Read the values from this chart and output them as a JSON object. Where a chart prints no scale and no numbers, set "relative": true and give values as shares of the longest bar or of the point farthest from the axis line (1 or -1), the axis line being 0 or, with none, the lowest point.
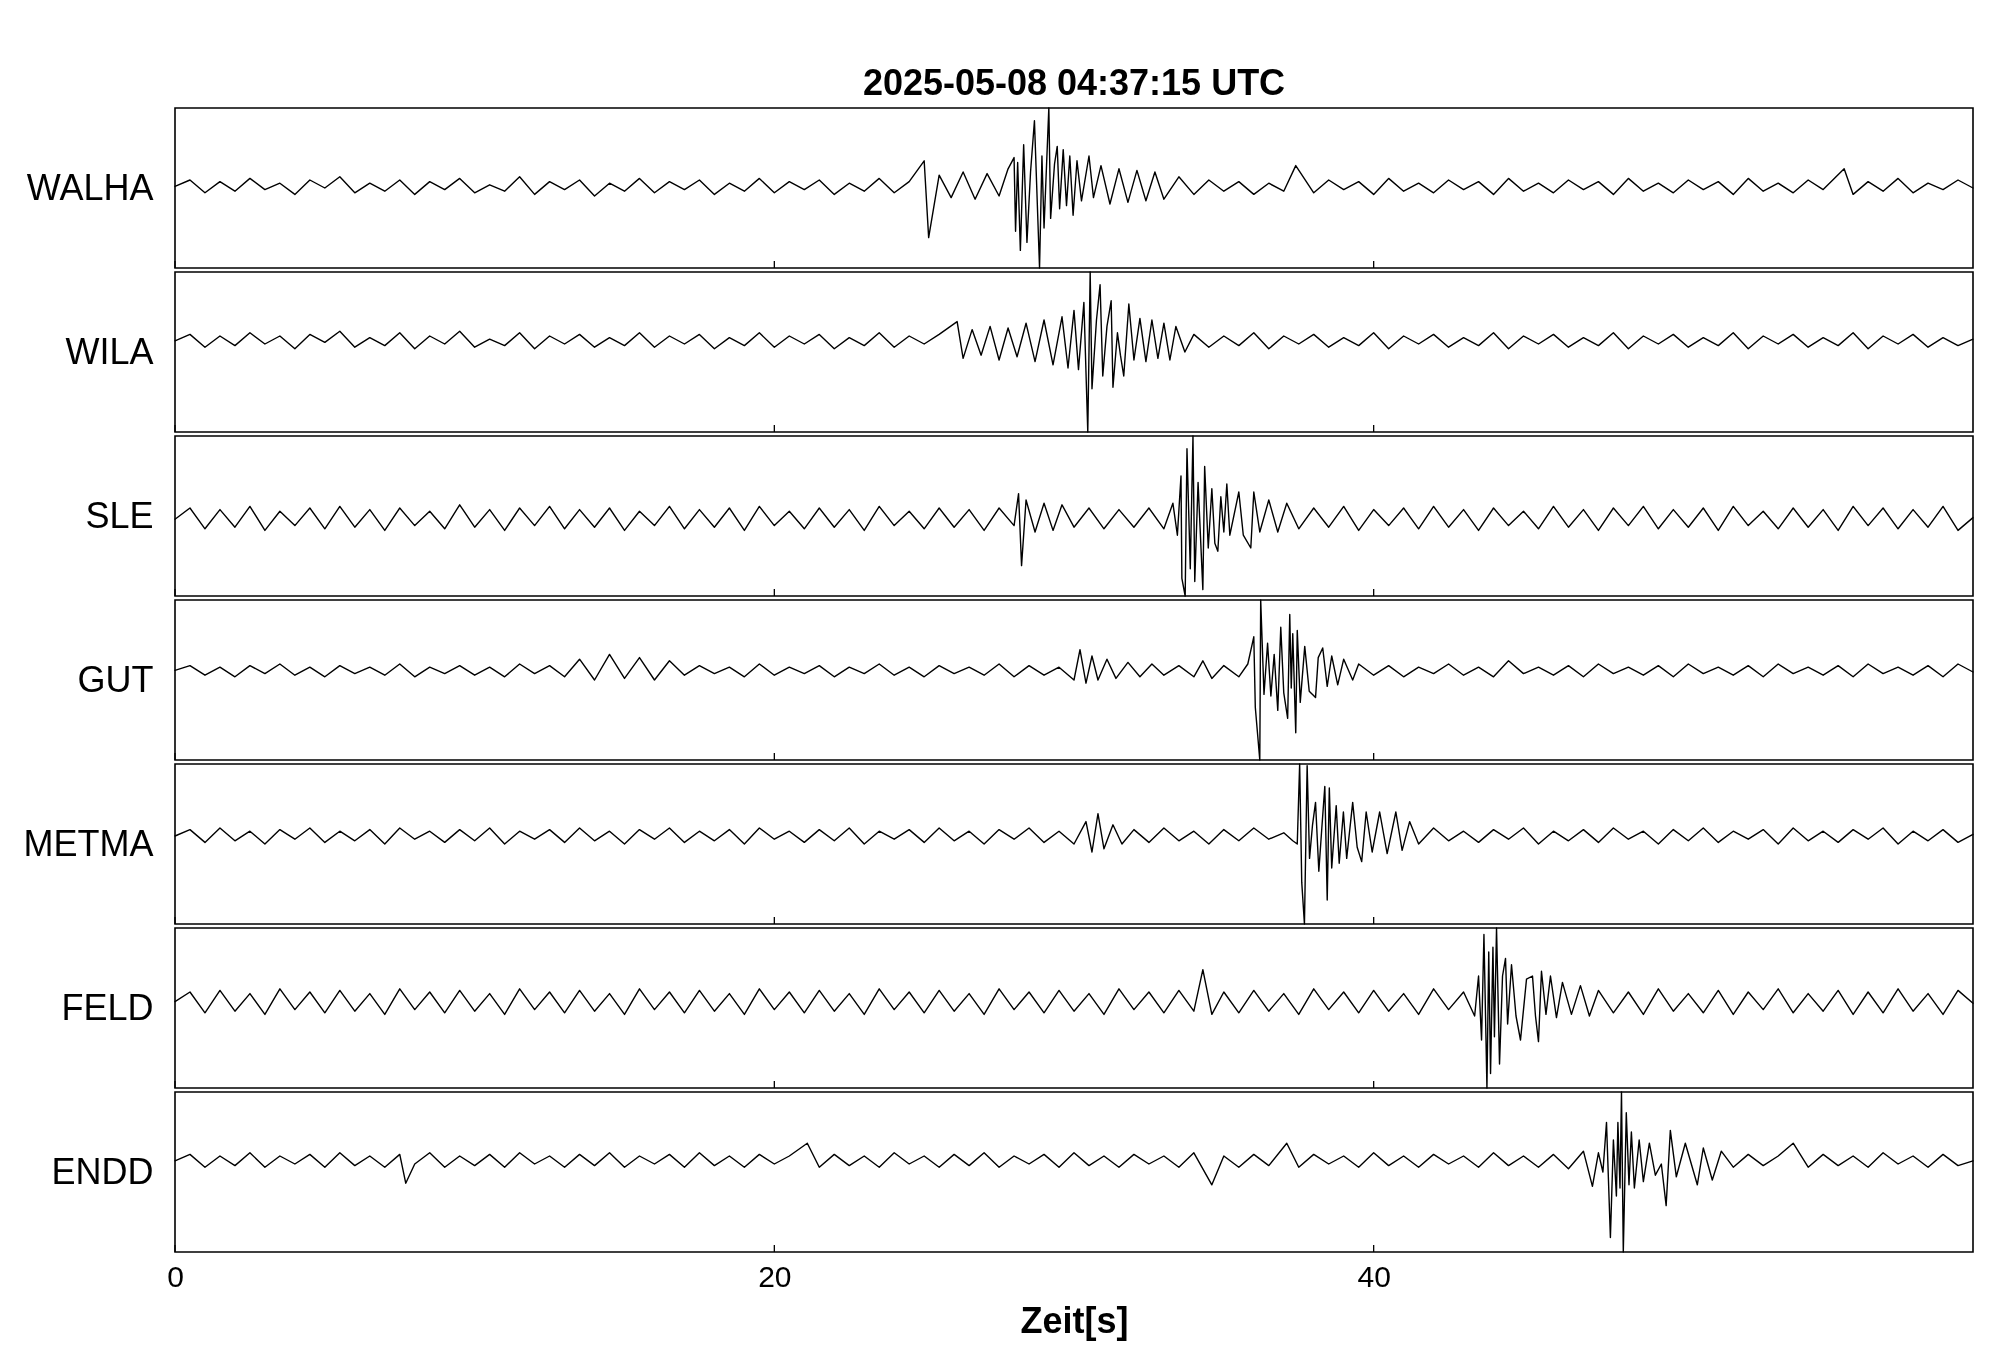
{
  "chart_data": [
    {
      "type": "line",
      "relative": true,
      "title": "2025-05-08  04:37:15 UTC",
      "ylabel": "WALHA",
      "color": "#000000",
      "xlim": [
        0,
        60
      ],
      "xticks": [
        0,
        20,
        40
      ],
      "tick_labels": false,
      "x": [
        0,
        0.5,
        1,
        1.5,
        2,
        2.5,
        3,
        3.5,
        4,
        4.5,
        5,
        5.5,
        6,
        6.5,
        7,
        7.5,
        8,
        8.5,
        9,
        9.5,
        10,
        10.5,
        11,
        11.5,
        12,
        12.5,
        13,
        13.5,
        14,
        14.5,
        15,
        15.5,
        16,
        16.5,
        17,
        17.5,
        18,
        18.5,
        19,
        19.5,
        20,
        20.5,
        21,
        21.5,
        22,
        22.5,
        23,
        23.5,
        24,
        24.5,
        25.0,
        25.15,
        25.5,
        25.9,
        26.3,
        26.7,
        27.1,
        27.5,
        27.8,
        28.0,
        28.05,
        28.12,
        28.21,
        28.32,
        28.43,
        28.55,
        28.68,
        28.85,
        28.93,
        29.0,
        29.16,
        29.22,
        29.35,
        29.44,
        29.52,
        29.64,
        29.75,
        29.86,
        29.97,
        30.1,
        30.25,
        30.5,
        30.65,
        30.9,
        31.2,
        31.5,
        31.8,
        32.1,
        32.4,
        32.7,
        33.0,
        33.5,
        34,
        34.5,
        35,
        35.5,
        36,
        36.5,
        37,
        37.4,
        38,
        38.5,
        39,
        39.5,
        40,
        40.5,
        41,
        41.5,
        42,
        42.5,
        43,
        43.5,
        44,
        44.5,
        45,
        45.5,
        46,
        46.5,
        47,
        47.5,
        48,
        48.5,
        49,
        49.5,
        50,
        50.5,
        51,
        51.5,
        52,
        52.5,
        53,
        53.5,
        54,
        54.5,
        55,
        55.7,
        56,
        56.5,
        57,
        57.5,
        58,
        58.5,
        59,
        59.5,
        60
      ],
      "values": [
        0.51,
        0.55,
        0.47,
        0.54,
        0.48,
        0.56,
        0.49,
        0.53,
        0.46,
        0.55,
        0.5,
        0.57,
        0.47,
        0.53,
        0.48,
        0.55,
        0.46,
        0.54,
        0.49,
        0.56,
        0.47,
        0.52,
        0.48,
        0.57,
        0.46,
        0.54,
        0.49,
        0.55,
        0.45,
        0.53,
        0.48,
        0.56,
        0.47,
        0.54,
        0.49,
        0.55,
        0.46,
        0.53,
        0.48,
        0.56,
        0.47,
        0.54,
        0.49,
        0.55,
        0.46,
        0.53,
        0.48,
        0.56,
        0.47,
        0.54,
        0.67,
        0.19,
        0.58,
        0.44,
        0.6,
        0.43,
        0.59,
        0.45,
        0.62,
        0.69,
        0.23,
        0.66,
        0.11,
        0.77,
        0.16,
        0.6,
        0.92,
        0.0,
        0.7,
        0.25,
        1.0,
        0.31,
        0.65,
        0.76,
        0.37,
        0.74,
        0.39,
        0.7,
        0.33,
        0.67,
        0.42,
        0.7,
        0.44,
        0.64,
        0.4,
        0.62,
        0.41,
        0.61,
        0.42,
        0.6,
        0.43,
        0.57,
        0.46,
        0.55,
        0.48,
        0.54,
        0.46,
        0.53,
        0.48,
        0.64,
        0.47,
        0.55,
        0.49,
        0.54,
        0.46,
        0.56,
        0.48,
        0.53,
        0.47,
        0.55,
        0.49,
        0.54,
        0.46,
        0.56,
        0.48,
        0.53,
        0.47,
        0.55,
        0.49,
        0.54,
        0.46,
        0.56,
        0.48,
        0.53,
        0.47,
        0.55,
        0.49,
        0.54,
        0.46,
        0.56,
        0.48,
        0.53,
        0.47,
        0.55,
        0.49,
        0.62,
        0.46,
        0.54,
        0.48,
        0.56,
        0.47,
        0.53,
        0.49,
        0.55,
        0.5
      ]
    },
    {
      "type": "line",
      "relative": true,
      "ylabel": "WILA",
      "color": "#000000",
      "xlim": [
        0,
        60
      ],
      "xticks": [
        0,
        20,
        40
      ],
      "tick_labels": false,
      "x": [
        0,
        0.5,
        1,
        1.5,
        2,
        2.5,
        3,
        3.5,
        4,
        4.5,
        5,
        5.5,
        6,
        6.5,
        7,
        7.5,
        8,
        8.5,
        9,
        9.5,
        10,
        10.5,
        11,
        11.5,
        12,
        12.5,
        13,
        13.5,
        14,
        14.5,
        15,
        15.5,
        16,
        16.5,
        17,
        17.5,
        18,
        18.5,
        19,
        19.5,
        20,
        20.5,
        21,
        21.5,
        22,
        22.5,
        23,
        23.5,
        24,
        24.5,
        25,
        25.5,
        26.1,
        26.3,
        26.6,
        26.9,
        27.2,
        27.5,
        27.8,
        28.1,
        28.4,
        28.7,
        29.0,
        29.3,
        29.6,
        29.8,
        30.0,
        30.15,
        30.33,
        30.46,
        30.54,
        30.6,
        30.75,
        30.87,
        30.96,
        31.1,
        31.24,
        31.3,
        31.45,
        31.55,
        31.66,
        31.83,
        32.0,
        32.2,
        32.4,
        32.6,
        32.8,
        33.0,
        33.2,
        33.4,
        33.7,
        34.0,
        34.5,
        35,
        35.5,
        36,
        36.5,
        37,
        37.5,
        38,
        38.5,
        39,
        39.5,
        40,
        40.5,
        41,
        41.5,
        42,
        42.5,
        43,
        43.5,
        44,
        44.5,
        45,
        45.5,
        46,
        46.5,
        47,
        47.5,
        48,
        48.5,
        49,
        49.5,
        50,
        50.5,
        51,
        51.5,
        52,
        52.5,
        53,
        53.5,
        54,
        54.5,
        55,
        55.5,
        56,
        56.5,
        57,
        57.5,
        58,
        58.5,
        59,
        59.5,
        60
      ],
      "values": [
        0.57,
        0.61,
        0.53,
        0.6,
        0.54,
        0.62,
        0.55,
        0.6,
        0.52,
        0.61,
        0.56,
        0.63,
        0.53,
        0.59,
        0.54,
        0.62,
        0.52,
        0.6,
        0.55,
        0.63,
        0.53,
        0.58,
        0.54,
        0.62,
        0.52,
        0.6,
        0.55,
        0.61,
        0.53,
        0.59,
        0.54,
        0.62,
        0.53,
        0.6,
        0.55,
        0.61,
        0.52,
        0.59,
        0.54,
        0.62,
        0.53,
        0.6,
        0.55,
        0.61,
        0.52,
        0.59,
        0.54,
        0.62,
        0.53,
        0.6,
        0.55,
        0.61,
        0.69,
        0.46,
        0.64,
        0.48,
        0.66,
        0.45,
        0.65,
        0.47,
        0.68,
        0.44,
        0.7,
        0.42,
        0.72,
        0.4,
        0.76,
        0.39,
        0.81,
        0.0,
        1.0,
        0.27,
        0.7,
        0.92,
        0.35,
        0.66,
        0.82,
        0.28,
        0.62,
        0.48,
        0.35,
        0.8,
        0.45,
        0.71,
        0.44,
        0.7,
        0.46,
        0.68,
        0.45,
        0.66,
        0.5,
        0.61,
        0.53,
        0.6,
        0.54,
        0.62,
        0.52,
        0.6,
        0.55,
        0.61,
        0.53,
        0.59,
        0.54,
        0.62,
        0.52,
        0.6,
        0.55,
        0.61,
        0.53,
        0.59,
        0.54,
        0.62,
        0.52,
        0.6,
        0.55,
        0.61,
        0.53,
        0.59,
        0.54,
        0.62,
        0.52,
        0.6,
        0.55,
        0.61,
        0.53,
        0.59,
        0.54,
        0.62,
        0.52,
        0.6,
        0.55,
        0.61,
        0.53,
        0.59,
        0.54,
        0.62,
        0.52,
        0.6,
        0.55,
        0.61,
        0.53,
        0.59,
        0.54,
        0.58
      ]
    },
    {
      "type": "line",
      "relative": true,
      "ylabel": "SLE",
      "color": "#000000",
      "xlim": [
        0,
        60
      ],
      "xticks": [
        0,
        20,
        40
      ],
      "tick_labels": false,
      "x": [
        0,
        0.5,
        1,
        1.5,
        2,
        2.5,
        3,
        3.5,
        4,
        4.5,
        5,
        5.5,
        6,
        6.5,
        7,
        7.5,
        8,
        8.5,
        9,
        9.5,
        10,
        10.5,
        11,
        11.5,
        12,
        12.5,
        13,
        13.5,
        14,
        14.5,
        15,
        15.5,
        16,
        16.5,
        17,
        17.5,
        18,
        18.5,
        19,
        19.5,
        20,
        20.5,
        21,
        21.5,
        22,
        22.5,
        23,
        23.5,
        24,
        24.5,
        25,
        25.5,
        26,
        26.5,
        27,
        27.5,
        28.0,
        28.15,
        28.25,
        28.4,
        28.7,
        29.0,
        29.3,
        29.6,
        30,
        30.5,
        31,
        31.5,
        32,
        32.5,
        33,
        33.3,
        33.45,
        33.57,
        33.6,
        33.71,
        33.77,
        33.88,
        33.97,
        34.03,
        34.14,
        34.3,
        34.36,
        34.48,
        34.6,
        34.7,
        34.8,
        34.9,
        35.0,
        35.1,
        35.2,
        35.5,
        35.65,
        35.9,
        36.0,
        36.2,
        36.5,
        36.8,
        37.1,
        37.5,
        38,
        38.5,
        39,
        39.5,
        40,
        40.5,
        41,
        41.5,
        42,
        42.5,
        43,
        43.5,
        44,
        44.5,
        45,
        45.5,
        46,
        46.5,
        47,
        47.5,
        48,
        48.5,
        49,
        49.5,
        50,
        50.5,
        51,
        51.5,
        52,
        52.5,
        53,
        53.5,
        54,
        54.5,
        55,
        55.5,
        56,
        56.5,
        57,
        57.5,
        58,
        58.5,
        59,
        59.5,
        60
      ],
      "values": [
        0.48,
        0.55,
        0.42,
        0.54,
        0.43,
        0.56,
        0.41,
        0.53,
        0.44,
        0.55,
        0.42,
        0.56,
        0.43,
        0.54,
        0.41,
        0.55,
        0.44,
        0.53,
        0.42,
        0.57,
        0.43,
        0.54,
        0.41,
        0.55,
        0.44,
        0.56,
        0.42,
        0.54,
        0.43,
        0.55,
        0.41,
        0.53,
        0.44,
        0.56,
        0.42,
        0.54,
        0.43,
        0.55,
        0.41,
        0.56,
        0.44,
        0.53,
        0.42,
        0.55,
        0.43,
        0.54,
        0.41,
        0.56,
        0.44,
        0.53,
        0.42,
        0.55,
        0.43,
        0.54,
        0.41,
        0.55,
        0.44,
        0.64,
        0.19,
        0.6,
        0.4,
        0.58,
        0.41,
        0.57,
        0.43,
        0.55,
        0.42,
        0.54,
        0.43,
        0.55,
        0.42,
        0.58,
        0.38,
        0.75,
        0.11,
        0.0,
        0.92,
        0.17,
        1.0,
        0.09,
        0.71,
        0.04,
        0.81,
        0.3,
        0.67,
        0.33,
        0.28,
        0.62,
        0.4,
        0.7,
        0.38,
        0.65,
        0.38,
        0.3,
        0.65,
        0.4,
        0.6,
        0.4,
        0.58,
        0.42,
        0.55,
        0.43,
        0.56,
        0.41,
        0.54,
        0.44,
        0.55,
        0.42,
        0.56,
        0.43,
        0.54,
        0.41,
        0.55,
        0.44,
        0.53,
        0.42,
        0.56,
        0.43,
        0.54,
        0.41,
        0.55,
        0.44,
        0.56,
        0.42,
        0.54,
        0.43,
        0.55,
        0.41,
        0.56,
        0.44,
        0.53,
        0.42,
        0.55,
        0.43,
        0.54,
        0.41,
        0.56,
        0.44,
        0.55,
        0.42,
        0.54,
        0.43,
        0.56,
        0.41,
        0.49
      ]
    },
    {
      "type": "line",
      "relative": true,
      "ylabel": "GUT",
      "color": "#000000",
      "xlim": [
        0,
        60
      ],
      "xticks": [
        0,
        20,
        40
      ],
      "tick_labels": false,
      "x": [
        0,
        0.5,
        1,
        1.5,
        2,
        2.5,
        3,
        3.5,
        4,
        4.5,
        5,
        5.5,
        6,
        6.5,
        7,
        7.5,
        8,
        8.5,
        9,
        9.5,
        10,
        10.5,
        11,
        11.5,
        12,
        12.5,
        13,
        13.5,
        14,
        14.5,
        15,
        15.5,
        16,
        16.5,
        17,
        17.5,
        18,
        18.5,
        19,
        19.5,
        20,
        20.5,
        21,
        21.5,
        22,
        22.5,
        23,
        23.5,
        24,
        24.5,
        25,
        25.5,
        26,
        26.5,
        27,
        27.5,
        28,
        28.5,
        29,
        29.5,
        30.0,
        30.2,
        30.4,
        30.6,
        30.8,
        31.1,
        31.4,
        31.8,
        32.2,
        32.6,
        33,
        33.5,
        34,
        34.3,
        34.6,
        35,
        35.5,
        35.8,
        36.0,
        36.05,
        36.2,
        36.23,
        36.34,
        36.46,
        36.57,
        36.68,
        36.8,
        36.9,
        37.0,
        37.13,
        37.2,
        37.25,
        37.3,
        37.4,
        37.45,
        37.55,
        37.7,
        37.85,
        38.06,
        38.15,
        38.3,
        38.45,
        38.6,
        38.8,
        39.0,
        39.3,
        39.5,
        40,
        40.5,
        41,
        41.5,
        42,
        42.5,
        43,
        43.5,
        44,
        44.5,
        45,
        45.5,
        46,
        46.5,
        47,
        47.5,
        48,
        48.5,
        49,
        49.5,
        50,
        50.5,
        51,
        51.5,
        52,
        52.5,
        53,
        53.5,
        54,
        54.5,
        55,
        55.5,
        56,
        56.5,
        57,
        57.5,
        58,
        58.5,
        59,
        59.5,
        60
      ],
      "values": [
        0.56,
        0.59,
        0.53,
        0.58,
        0.52,
        0.59,
        0.54,
        0.6,
        0.53,
        0.58,
        0.52,
        0.59,
        0.54,
        0.58,
        0.53,
        0.6,
        0.52,
        0.58,
        0.54,
        0.59,
        0.53,
        0.58,
        0.52,
        0.6,
        0.54,
        0.59,
        0.52,
        0.63,
        0.5,
        0.66,
        0.51,
        0.64,
        0.5,
        0.62,
        0.53,
        0.59,
        0.54,
        0.58,
        0.52,
        0.6,
        0.53,
        0.58,
        0.54,
        0.59,
        0.52,
        0.58,
        0.54,
        0.6,
        0.53,
        0.58,
        0.52,
        0.59,
        0.54,
        0.58,
        0.53,
        0.6,
        0.52,
        0.59,
        0.53,
        0.58,
        0.5,
        0.69,
        0.48,
        0.65,
        0.5,
        0.63,
        0.51,
        0.61,
        0.52,
        0.6,
        0.53,
        0.59,
        0.52,
        0.62,
        0.51,
        0.59,
        0.52,
        0.6,
        0.77,
        0.33,
        0.0,
        1.0,
        0.41,
        0.73,
        0.4,
        0.66,
        0.31,
        0.83,
        0.42,
        0.26,
        0.91,
        0.45,
        0.79,
        0.17,
        0.81,
        0.36,
        0.71,
        0.43,
        0.39,
        0.64,
        0.7,
        0.46,
        0.65,
        0.47,
        0.63,
        0.5,
        0.6,
        0.53,
        0.59,
        0.52,
        0.58,
        0.54,
        0.6,
        0.53,
        0.58,
        0.52,
        0.62,
        0.54,
        0.58,
        0.53,
        0.59,
        0.52,
        0.6,
        0.54,
        0.58,
        0.53,
        0.59,
        0.52,
        0.6,
        0.54,
        0.58,
        0.53,
        0.59,
        0.52,
        0.6,
        0.54,
        0.58,
        0.53,
        0.59,
        0.52,
        0.6,
        0.54,
        0.58,
        0.53,
        0.59,
        0.52,
        0.6,
        0.55
      ]
    },
    {
      "type": "line",
      "relative": true,
      "ylabel": "METMA",
      "color": "#000000",
      "xlim": [
        0,
        60
      ],
      "xticks": [
        0,
        20,
        40
      ],
      "tick_labels": false,
      "x": [
        0,
        0.5,
        1,
        1.5,
        2,
        2.5,
        3,
        3.5,
        4,
        4.5,
        5,
        5.5,
        6,
        6.5,
        7,
        7.5,
        8,
        8.5,
        9,
        9.5,
        10,
        10.5,
        11,
        11.5,
        12,
        12.5,
        13,
        13.5,
        14,
        14.5,
        15,
        15.5,
        16,
        16.5,
        17,
        17.5,
        18,
        18.5,
        19,
        19.5,
        20,
        20.5,
        21,
        21.5,
        22,
        22.5,
        23,
        23.5,
        24,
        24.5,
        25,
        25.5,
        26,
        26.5,
        27,
        27.5,
        28,
        28.5,
        29,
        29.5,
        30,
        30.4,
        30.6,
        30.8,
        31.0,
        31.3,
        31.6,
        32,
        32.5,
        33,
        33.5,
        34,
        34.5,
        35,
        35.5,
        36,
        36.5,
        37,
        37.3,
        37.45,
        37.53,
        37.6,
        37.69,
        37.78,
        37.86,
        37.96,
        38.06,
        38.17,
        38.27,
        38.37,
        38.45,
        38.52,
        38.6,
        38.75,
        38.85,
        38.99,
        39.1,
        39.3,
        39.45,
        39.6,
        39.75,
        39.95,
        40.2,
        40.45,
        40.74,
        40.95,
        41.2,
        41.5,
        42,
        42.5,
        43,
        43.5,
        44,
        44.5,
        45,
        45.5,
        46,
        46.5,
        47,
        47.5,
        48,
        48.5,
        49,
        49.5,
        50,
        50.5,
        51,
        51.5,
        52,
        52.5,
        53,
        53.5,
        54,
        54.5,
        55,
        55.5,
        56,
        56.5,
        57,
        57.5,
        58,
        58.5,
        59,
        59.5,
        60
      ],
      "values": [
        0.55,
        0.59,
        0.51,
        0.6,
        0.52,
        0.58,
        0.5,
        0.59,
        0.53,
        0.6,
        0.51,
        0.58,
        0.52,
        0.59,
        0.5,
        0.6,
        0.53,
        0.58,
        0.51,
        0.59,
        0.52,
        0.6,
        0.5,
        0.58,
        0.53,
        0.59,
        0.51,
        0.6,
        0.52,
        0.58,
        0.5,
        0.59,
        0.53,
        0.6,
        0.51,
        0.58,
        0.52,
        0.59,
        0.5,
        0.6,
        0.53,
        0.58,
        0.51,
        0.59,
        0.52,
        0.6,
        0.5,
        0.58,
        0.53,
        0.59,
        0.51,
        0.6,
        0.52,
        0.58,
        0.5,
        0.59,
        0.53,
        0.6,
        0.51,
        0.58,
        0.5,
        0.64,
        0.45,
        0.69,
        0.47,
        0.62,
        0.5,
        0.59,
        0.51,
        0.6,
        0.52,
        0.58,
        0.5,
        0.59,
        0.52,
        0.6,
        0.53,
        0.57,
        0.52,
        0.5,
        1.0,
        0.26,
        0.0,
        0.99,
        0.41,
        0.62,
        0.76,
        0.33,
        0.6,
        0.86,
        0.15,
        0.85,
        0.35,
        0.74,
        0.38,
        0.7,
        0.41,
        0.76,
        0.48,
        0.39,
        0.7,
        0.45,
        0.7,
        0.44,
        0.7,
        0.46,
        0.64,
        0.5,
        0.6,
        0.52,
        0.58,
        0.51,
        0.59,
        0.53,
        0.6,
        0.5,
        0.58,
        0.52,
        0.59,
        0.51,
        0.6,
        0.53,
        0.58,
        0.5,
        0.59,
        0.52,
        0.6,
        0.51,
        0.58,
        0.53,
        0.59,
        0.5,
        0.6,
        0.52,
        0.58,
        0.51,
        0.59,
        0.53,
        0.6,
        0.5,
        0.58,
        0.52,
        0.59,
        0.51,
        0.56
      ]
    },
    {
      "type": "line",
      "relative": true,
      "ylabel": "FELD",
      "color": "#000000",
      "xlim": [
        0,
        60
      ],
      "xticks": [
        0,
        20,
        40
      ],
      "tick_labels": false,
      "x": [
        0,
        0.5,
        1,
        1.5,
        2,
        2.5,
        3,
        3.5,
        4,
        4.5,
        5,
        5.5,
        6,
        6.5,
        7,
        7.5,
        8,
        8.5,
        9,
        9.5,
        10,
        10.5,
        11,
        11.5,
        12,
        12.5,
        13,
        13.5,
        14,
        14.5,
        15,
        15.5,
        16,
        16.5,
        17,
        17.5,
        18,
        18.5,
        19,
        19.5,
        20,
        20.5,
        21,
        21.5,
        22,
        22.5,
        23,
        23.5,
        24,
        24.5,
        25,
        25.5,
        26,
        26.5,
        27,
        27.5,
        28,
        28.5,
        29,
        29.5,
        30,
        30.5,
        31,
        31.5,
        32,
        32.5,
        33,
        33.5,
        34,
        34.3,
        34.6,
        35,
        35.5,
        36,
        36.5,
        37,
        37.5,
        38,
        38.5,
        39,
        39.5,
        40,
        40.5,
        41,
        41.5,
        42,
        42.5,
        43,
        43.37,
        43.5,
        43.6,
        43.68,
        43.78,
        43.84,
        43.9,
        43.98,
        44.03,
        44.1,
        44.2,
        44.3,
        44.4,
        44.47,
        44.6,
        44.75,
        44.9,
        45.1,
        45.3,
        45.4,
        45.5,
        45.6,
        45.75,
        45.9,
        46.1,
        46.3,
        46.6,
        46.9,
        47.2,
        47.5,
        48,
        48.5,
        49,
        49.5,
        50,
        50.5,
        51,
        51.5,
        52,
        52.5,
        53,
        53.5,
        54,
        54.5,
        55,
        55.5,
        56,
        56.5,
        57,
        57.5,
        58,
        58.5,
        59,
        59.5,
        60
      ],
      "values": [
        0.54,
        0.6,
        0.47,
        0.61,
        0.48,
        0.59,
        0.46,
        0.62,
        0.49,
        0.6,
        0.47,
        0.61,
        0.48,
        0.59,
        0.46,
        0.62,
        0.49,
        0.6,
        0.47,
        0.61,
        0.48,
        0.59,
        0.46,
        0.62,
        0.49,
        0.6,
        0.47,
        0.61,
        0.48,
        0.59,
        0.46,
        0.62,
        0.49,
        0.6,
        0.47,
        0.61,
        0.48,
        0.59,
        0.46,
        0.62,
        0.49,
        0.6,
        0.47,
        0.61,
        0.48,
        0.59,
        0.46,
        0.62,
        0.49,
        0.6,
        0.47,
        0.61,
        0.48,
        0.59,
        0.46,
        0.62,
        0.49,
        0.6,
        0.47,
        0.61,
        0.48,
        0.59,
        0.46,
        0.62,
        0.49,
        0.6,
        0.47,
        0.61,
        0.48,
        0.74,
        0.46,
        0.6,
        0.47,
        0.61,
        0.48,
        0.59,
        0.46,
        0.62,
        0.49,
        0.6,
        0.47,
        0.61,
        0.48,
        0.59,
        0.46,
        0.62,
        0.49,
        0.6,
        0.45,
        0.7,
        0.3,
        0.96,
        0.0,
        0.85,
        0.09,
        0.88,
        0.32,
        1.0,
        0.15,
        0.7,
        0.81,
        0.4,
        0.77,
        0.45,
        0.3,
        0.68,
        0.7,
        0.45,
        0.29,
        0.73,
        0.46,
        0.7,
        0.44,
        0.66,
        0.46,
        0.64,
        0.45,
        0.61,
        0.47,
        0.6,
        0.46,
        0.62,
        0.48,
        0.59,
        0.47,
        0.61,
        0.46,
        0.6,
        0.49,
        0.62,
        0.47,
        0.59,
        0.48,
        0.61,
        0.46,
        0.6,
        0.47,
        0.62,
        0.48,
        0.59,
        0.46,
        0.61,
        0.53
      ]
    },
    {
      "type": "line",
      "relative": true,
      "ylabel": "ENDD",
      "xlabel": "Zeit[s]",
      "color": "#000000",
      "xlim": [
        0,
        60
      ],
      "xticks": [
        0,
        20,
        40
      ],
      "tick_labels": "x",
      "x": [
        0,
        0.5,
        1,
        1.5,
        2,
        2.5,
        3,
        3.5,
        4,
        4.5,
        5,
        5.5,
        6,
        6.5,
        7,
        7.5,
        7.7,
        8,
        8.5,
        9,
        9.5,
        10,
        10.5,
        11,
        11.5,
        12,
        12.5,
        13,
        13.5,
        14,
        14.5,
        15,
        15.5,
        16,
        16.5,
        17,
        17.5,
        18,
        18.5,
        19,
        19.5,
        20,
        20.5,
        21.1,
        21.5,
        22,
        22.5,
        23,
        23.5,
        24,
        24.5,
        25,
        25.5,
        26,
        26.5,
        27,
        27.5,
        28,
        28.5,
        29,
        29.5,
        30,
        30.5,
        31,
        31.5,
        32,
        32.5,
        33,
        33.5,
        34,
        34.6,
        35,
        35.5,
        36,
        36.5,
        37.1,
        37.5,
        38,
        38.5,
        39,
        39.5,
        40,
        40.5,
        41,
        41.5,
        42,
        42.5,
        43,
        43.5,
        44,
        44.5,
        45,
        45.5,
        46,
        46.5,
        47,
        47.3,
        47.5,
        47.65,
        47.77,
        47.9,
        48.0,
        48.1,
        48.15,
        48.22,
        48.27,
        48.33,
        48.43,
        48.52,
        48.6,
        48.7,
        48.86,
        49.0,
        49.2,
        49.4,
        49.6,
        49.76,
        49.9,
        50.1,
        50.4,
        50.8,
        51.0,
        51.3,
        51.6,
        52,
        52.5,
        53,
        53.5,
        54,
        54.5,
        55,
        55.5,
        56,
        56.5,
        57,
        57.5,
        58,
        58.5,
        59,
        59.5,
        60
      ],
      "values": [
        0.57,
        0.61,
        0.53,
        0.6,
        0.54,
        0.62,
        0.53,
        0.6,
        0.55,
        0.61,
        0.53,
        0.62,
        0.54,
        0.6,
        0.53,
        0.61,
        0.43,
        0.55,
        0.62,
        0.53,
        0.6,
        0.54,
        0.61,
        0.53,
        0.62,
        0.55,
        0.6,
        0.53,
        0.61,
        0.54,
        0.62,
        0.53,
        0.6,
        0.55,
        0.61,
        0.53,
        0.62,
        0.54,
        0.6,
        0.53,
        0.61,
        0.55,
        0.6,
        0.68,
        0.53,
        0.61,
        0.54,
        0.6,
        0.53,
        0.62,
        0.55,
        0.6,
        0.53,
        0.61,
        0.54,
        0.62,
        0.53,
        0.6,
        0.55,
        0.61,
        0.53,
        0.62,
        0.54,
        0.6,
        0.53,
        0.61,
        0.55,
        0.6,
        0.53,
        0.62,
        0.42,
        0.6,
        0.53,
        0.61,
        0.54,
        0.68,
        0.53,
        0.61,
        0.55,
        0.6,
        0.53,
        0.62,
        0.54,
        0.6,
        0.53,
        0.61,
        0.55,
        0.6,
        0.53,
        0.62,
        0.54,
        0.6,
        0.53,
        0.61,
        0.52,
        0.63,
        0.41,
        0.62,
        0.5,
        0.81,
        0.09,
        0.7,
        0.35,
        0.81,
        0.4,
        1.0,
        0.0,
        0.87,
        0.42,
        0.75,
        0.4,
        0.7,
        0.44,
        0.68,
        0.48,
        0.55,
        0.29,
        0.76,
        0.47,
        0.68,
        0.42,
        0.65,
        0.45,
        0.63,
        0.53,
        0.61,
        0.54,
        0.6,
        0.68,
        0.53,
        0.61,
        0.54,
        0.6,
        0.53,
        0.62,
        0.55,
        0.6,
        0.53,
        0.61,
        0.54,
        0.57
      ]
    }
  ]
}
